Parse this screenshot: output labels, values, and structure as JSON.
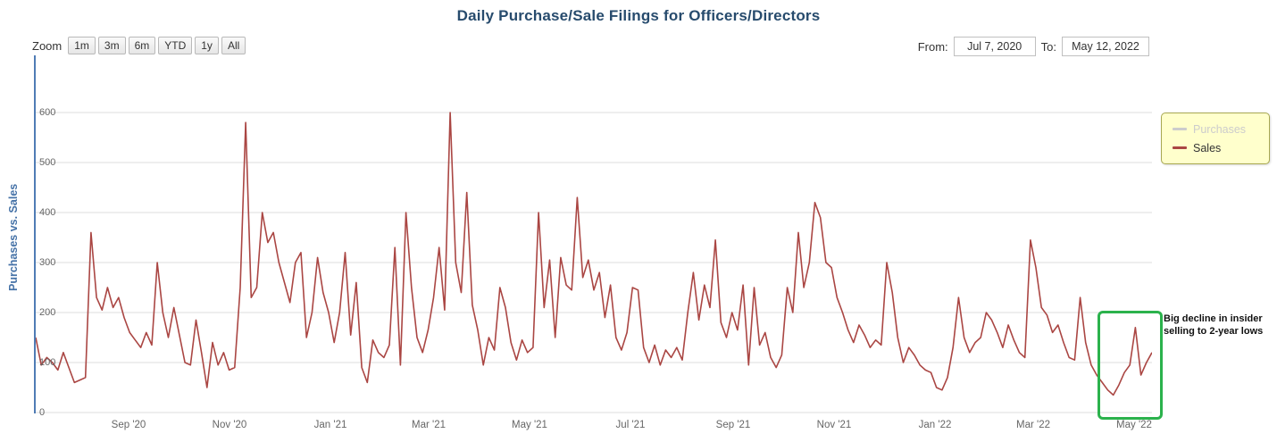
{
  "title": "Daily Purchase/Sale Filings for Officers/Directors",
  "range_selector": {
    "zoom_label": "Zoom",
    "buttons": [
      "1m",
      "3m",
      "6m",
      "YTD",
      "1y",
      "All"
    ],
    "from_label": "From:",
    "from_value": "Jul 7, 2020",
    "to_label": "To:",
    "to_value": "May 12, 2022"
  },
  "legend": {
    "position": "right",
    "items": [
      {
        "label": "Purchases",
        "color": "#cccccc",
        "text_color": "#cccccc",
        "visible": false
      },
      {
        "label": "Sales",
        "color": "#AA4643",
        "text_color": "#333333",
        "visible": true
      }
    ]
  },
  "annotation": {
    "text": "Big decline in insider selling to 2-year lows"
  },
  "chart_data": {
    "type": "line",
    "title": "Daily Purchase/Sale Filings for Officers/Directors",
    "xlabel": "",
    "ylabel": "Purchases vs. Sales",
    "ylim": [
      0,
      700
    ],
    "y_ticks": [
      0,
      100,
      200,
      300,
      400,
      500,
      600
    ],
    "grid": true,
    "legend_position": "right",
    "x_range": [
      "Jul 7, 2020",
      "May 12, 2022"
    ],
    "x_ticks": [
      {
        "label": "Sep '20",
        "pos": 0.0831
      },
      {
        "label": "Nov '20",
        "pos": 0.1736
      },
      {
        "label": "Jan '21",
        "pos": 0.2641
      },
      {
        "label": "Mar '21",
        "pos": 0.3516
      },
      {
        "label": "May '21",
        "pos": 0.4421
      },
      {
        "label": "Jul '21",
        "pos": 0.5326
      },
      {
        "label": "Sep '21",
        "pos": 0.6246
      },
      {
        "label": "Nov '21",
        "pos": 0.7151
      },
      {
        "label": "Jan '22",
        "pos": 0.8056
      },
      {
        "label": "Mar '22",
        "pos": 0.8932
      },
      {
        "label": "May '22",
        "pos": 0.9837
      }
    ],
    "series": [
      {
        "name": "Purchases",
        "color": "#cccccc",
        "visible": false,
        "values": []
      },
      {
        "name": "Sales",
        "color": "#AA4643",
        "visible": true,
        "values": [
          150,
          95,
          110,
          100,
          85,
          120,
          90,
          60,
          65,
          70,
          360,
          230,
          205,
          250,
          210,
          230,
          190,
          160,
          145,
          130,
          160,
          135,
          300,
          200,
          150,
          210,
          155,
          100,
          95,
          185,
          120,
          50,
          140,
          95,
          120,
          85,
          90,
          250,
          580,
          230,
          250,
          400,
          340,
          360,
          300,
          260,
          220,
          300,
          320,
          150,
          200,
          310,
          240,
          200,
          140,
          200,
          320,
          155,
          260,
          90,
          60,
          145,
          120,
          110,
          135,
          330,
          95,
          400,
          250,
          150,
          120,
          165,
          230,
          330,
          205,
          600,
          300,
          240,
          440,
          215,
          165,
          95,
          150,
          125,
          250,
          210,
          140,
          105,
          145,
          120,
          130,
          400,
          210,
          305,
          150,
          310,
          255,
          245,
          430,
          270,
          305,
          245,
          280,
          190,
          255,
          150,
          125,
          160,
          250,
          245,
          130,
          100,
          135,
          95,
          125,
          110,
          130,
          105,
          200,
          280,
          185,
          255,
          210,
          345,
          180,
          150,
          200,
          165,
          255,
          95,
          250,
          135,
          160,
          110,
          90,
          115,
          250,
          200,
          360,
          250,
          300,
          420,
          390,
          300,
          290,
          230,
          200,
          165,
          140,
          175,
          155,
          130,
          145,
          135,
          300,
          240,
          150,
          100,
          130,
          115,
          95,
          85,
          80,
          50,
          45,
          70,
          130,
          230,
          150,
          120,
          140,
          150,
          200,
          185,
          160,
          130,
          175,
          145,
          120,
          110,
          345,
          290,
          210,
          195,
          160,
          175,
          140,
          110,
          105,
          230,
          140,
          95,
          75,
          60,
          45,
          35,
          55,
          80,
          95,
          170,
          75,
          100,
          120
        ]
      }
    ]
  }
}
